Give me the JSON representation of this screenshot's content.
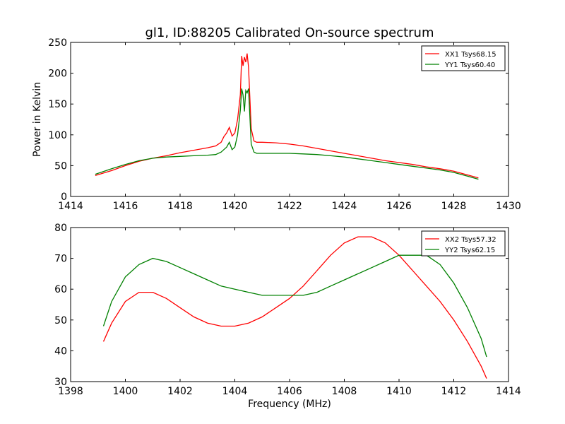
{
  "chart_data": [
    {
      "type": "line",
      "title": "gl1, ID:88205 Calibrated On-source spectrum",
      "xlabel": "",
      "ylabel": "Power in Kelvin",
      "xlim": [
        1414,
        1430
      ],
      "ylim": [
        0,
        250
      ],
      "xticks": [
        1414,
        1416,
        1418,
        1420,
        1422,
        1424,
        1426,
        1428,
        1430
      ],
      "yticks": [
        0,
        50,
        100,
        150,
        200,
        250
      ],
      "grid": false,
      "legend": "top-right",
      "series": [
        {
          "name": "XX1 Tsys68.15",
          "color": "#ff0000",
          "x": [
            1414.9,
            1415.5,
            1416.0,
            1416.5,
            1417.0,
            1417.5,
            1418.0,
            1418.5,
            1419.0,
            1419.3,
            1419.5,
            1419.6,
            1419.7,
            1419.8,
            1419.9,
            1420.0,
            1420.1,
            1420.2,
            1420.25,
            1420.3,
            1420.35,
            1420.4,
            1420.45,
            1420.5,
            1420.55,
            1420.6,
            1420.7,
            1420.8,
            1421.0,
            1421.5,
            1422.0,
            1422.5,
            1423.0,
            1423.5,
            1424.0,
            1424.5,
            1425.0,
            1425.5,
            1426.0,
            1426.5,
            1427.0,
            1427.5,
            1428.0,
            1428.5,
            1428.9
          ],
          "values": [
            34,
            42,
            50,
            57,
            62,
            66,
            71,
            75,
            79,
            82,
            88,
            97,
            103,
            112,
            98,
            103,
            125,
            165,
            228,
            212,
            226,
            218,
            232,
            210,
            160,
            110,
            90,
            88,
            88,
            87,
            85,
            82,
            78,
            74,
            70,
            66,
            62,
            58,
            55,
            52,
            48,
            45,
            41,
            35,
            30
          ]
        },
        {
          "name": "YY1 Tsys60.40",
          "color": "#008000",
          "x": [
            1414.9,
            1415.5,
            1416.0,
            1416.5,
            1417.0,
            1417.5,
            1418.0,
            1418.5,
            1419.0,
            1419.3,
            1419.5,
            1419.6,
            1419.7,
            1419.8,
            1419.9,
            1420.0,
            1420.1,
            1420.2,
            1420.25,
            1420.3,
            1420.35,
            1420.4,
            1420.45,
            1420.5,
            1420.55,
            1420.6,
            1420.7,
            1420.8,
            1421.0,
            1421.5,
            1422.0,
            1422.5,
            1423.0,
            1423.5,
            1424.0,
            1424.5,
            1425.0,
            1425.5,
            1426.0,
            1426.5,
            1427.0,
            1427.5,
            1428.0,
            1428.5,
            1428.9
          ],
          "values": [
            36,
            45,
            52,
            58,
            62,
            64,
            65,
            66,
            67,
            68,
            72,
            76,
            80,
            88,
            76,
            80,
            100,
            140,
            175,
            165,
            138,
            172,
            168,
            175,
            130,
            85,
            72,
            70,
            70,
            70,
            70,
            69,
            68,
            66,
            64,
            61,
            58,
            55,
            52,
            49,
            46,
            43,
            39,
            33,
            28
          ]
        }
      ]
    },
    {
      "type": "line",
      "title": "",
      "xlabel": "Frequency (MHz)",
      "ylabel": "",
      "xlim": [
        1398,
        1414
      ],
      "ylim": [
        30,
        80
      ],
      "xticks": [
        1398,
        1400,
        1402,
        1404,
        1406,
        1408,
        1410,
        1412,
        1414
      ],
      "yticks": [
        30,
        40,
        50,
        60,
        70,
        80
      ],
      "grid": false,
      "legend": "top-right",
      "series": [
        {
          "name": "XX2 Tsys57.32",
          "color": "#ff0000",
          "x": [
            1399.2,
            1399.5,
            1400.0,
            1400.5,
            1401.0,
            1401.5,
            1402.0,
            1402.5,
            1403.0,
            1403.5,
            1404.0,
            1404.5,
            1405.0,
            1405.5,
            1406.0,
            1406.5,
            1407.0,
            1407.5,
            1408.0,
            1408.5,
            1409.0,
            1409.5,
            1410.0,
            1410.5,
            1411.0,
            1411.5,
            1412.0,
            1412.5,
            1413.0,
            1413.2
          ],
          "values": [
            43,
            49,
            56,
            59,
            59,
            57,
            54,
            51,
            49,
            48,
            48,
            49,
            51,
            54,
            57,
            61,
            66,
            71,
            75,
            77,
            77,
            75,
            71,
            66,
            61,
            56,
            50,
            43,
            35,
            31
          ]
        },
        {
          "name": "YY2 Tsys62.15",
          "color": "#008000",
          "x": [
            1399.2,
            1399.5,
            1400.0,
            1400.5,
            1401.0,
            1401.5,
            1402.0,
            1402.5,
            1403.0,
            1403.5,
            1404.0,
            1404.5,
            1405.0,
            1405.5,
            1406.0,
            1406.5,
            1407.0,
            1407.5,
            1408.0,
            1408.5,
            1409.0,
            1409.5,
            1410.0,
            1410.5,
            1411.0,
            1411.5,
            1412.0,
            1412.5,
            1413.0,
            1413.2
          ],
          "values": [
            48,
            56,
            64,
            68,
            70,
            69,
            67,
            65,
            63,
            61,
            60,
            59,
            58,
            58,
            58,
            58,
            59,
            61,
            63,
            65,
            67,
            69,
            71,
            71,
            71,
            68,
            62,
            54,
            44,
            38
          ]
        }
      ]
    }
  ]
}
